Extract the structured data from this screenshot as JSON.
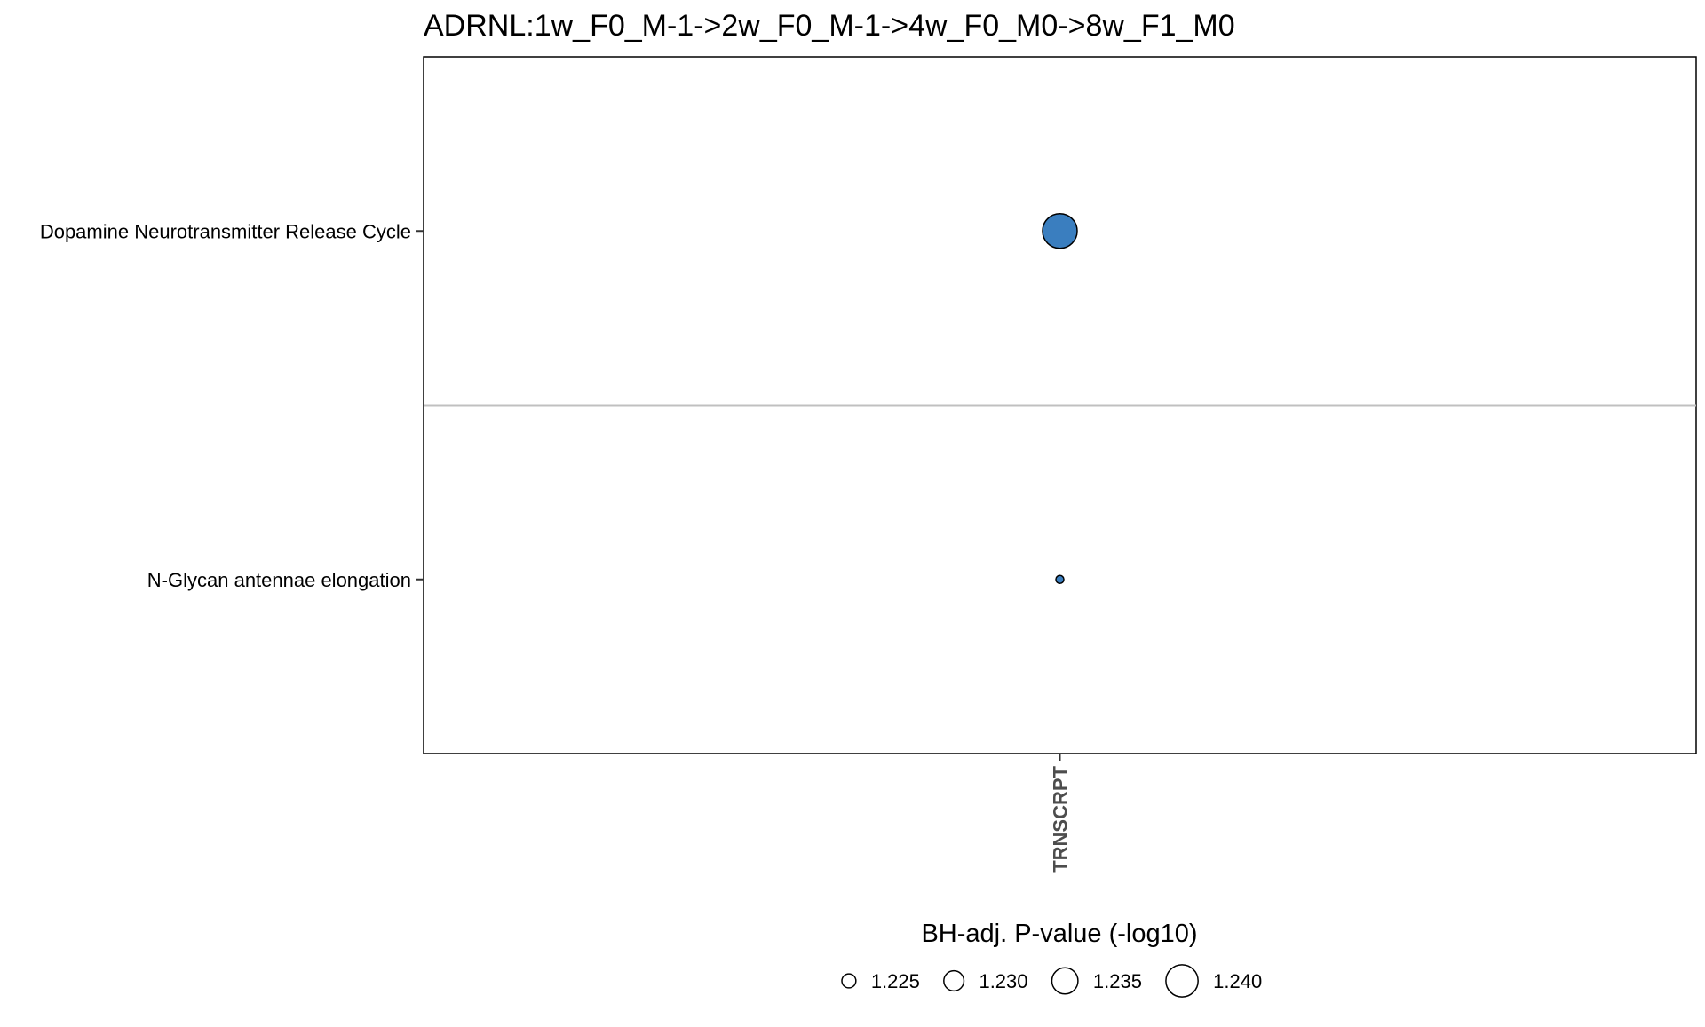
{
  "chart_data": {
    "type": "scatter",
    "title": "ADRNL:1w_F0_M-1->2w_F0_M-1->4w_F0_M0->8w_F1_M0",
    "x_categories": [
      "TRNSCRPT"
    ],
    "y_categories": [
      "Dopamine Neurotransmitter Release Cycle",
      "N-Glycan antennae elongation"
    ],
    "points": [
      {
        "x": "TRNSCRPT",
        "y": "Dopamine Neurotransmitter Release Cycle",
        "size_value": 1.242
      },
      {
        "x": "TRNSCRPT",
        "y": "N-Glycan antennae elongation",
        "size_value": 1.22
      }
    ],
    "size_legend": {
      "title": "BH-adj. P-value (-log10)",
      "values": [
        1.225,
        1.23,
        1.235,
        1.24
      ],
      "labels": [
        "1.225",
        "1.230",
        "1.235",
        "1.240"
      ],
      "placement": "bottom"
    },
    "colors": {
      "point_fill": "#3a7ebf",
      "point_stroke": "#000000",
      "separator": "#c0c0c0"
    },
    "grid": false
  }
}
